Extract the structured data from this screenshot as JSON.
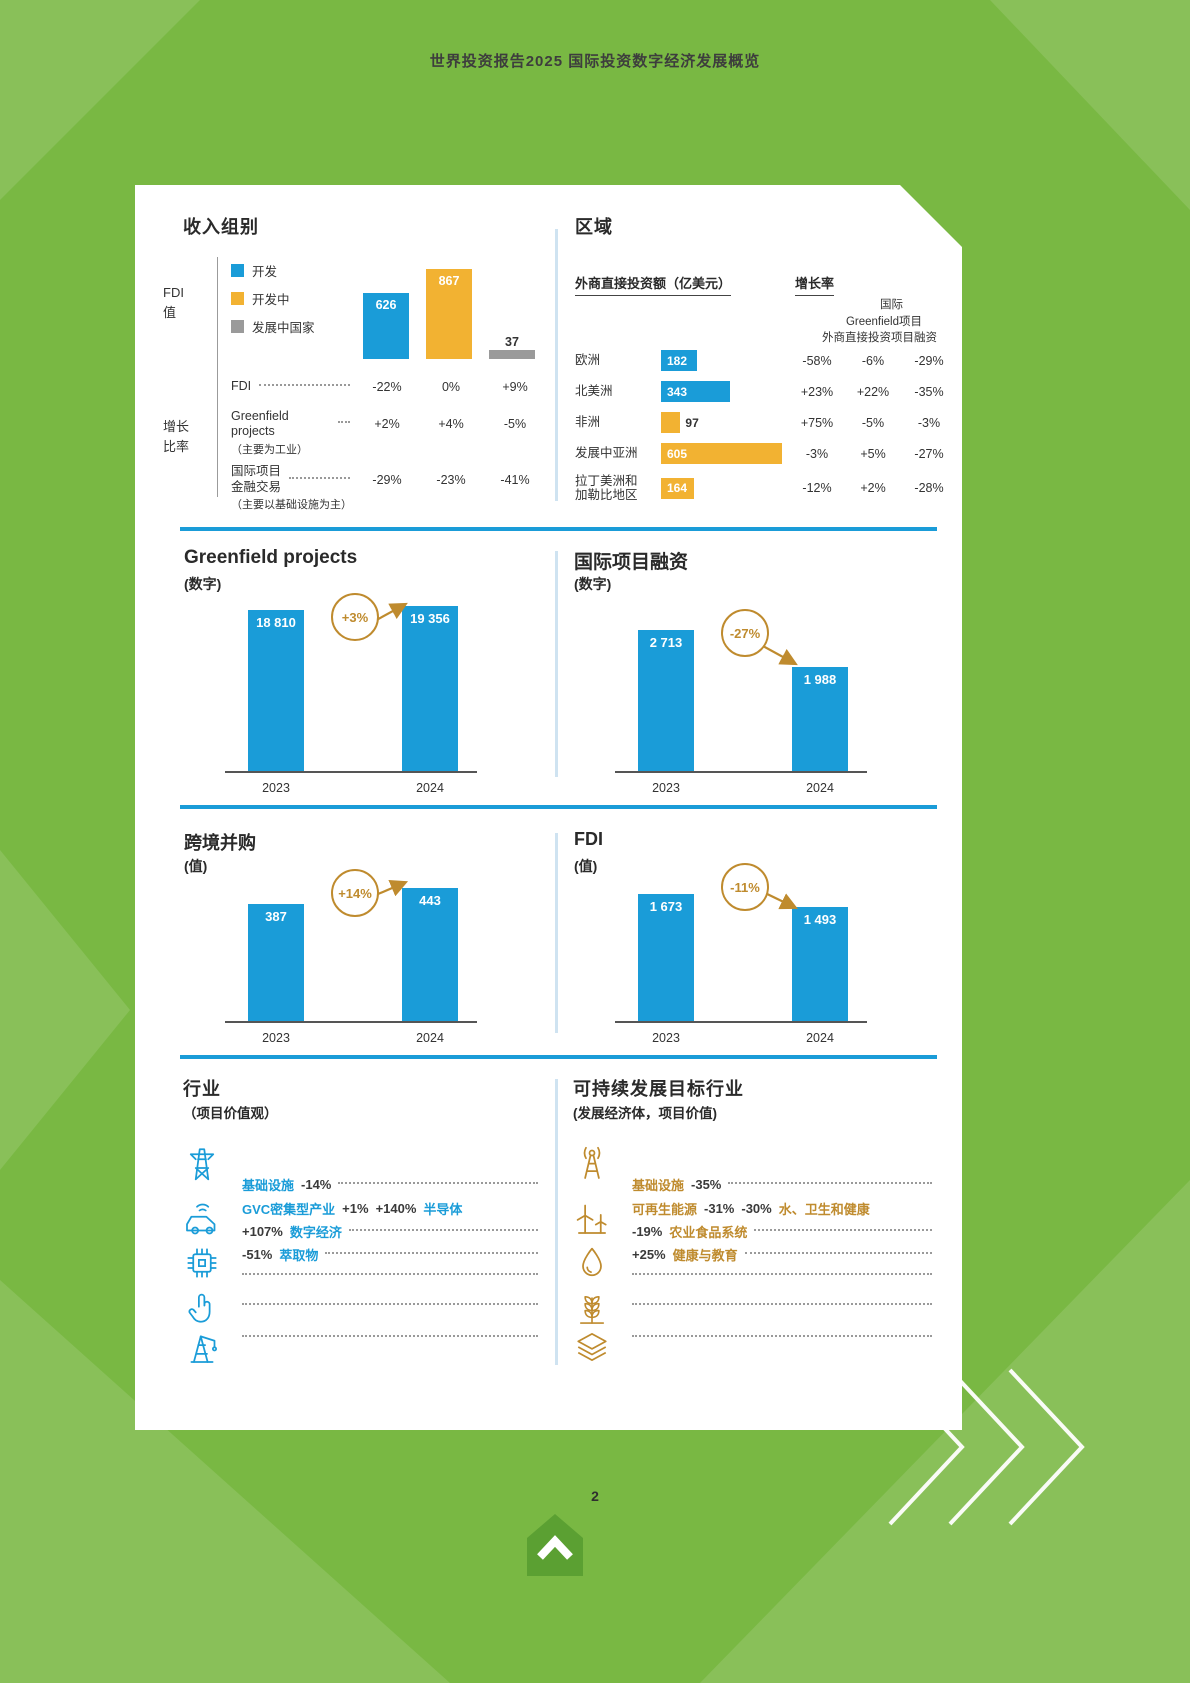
{
  "page": {
    "header": "世界投资报告2025 国际投资数字经济发展概览",
    "page_number": "2"
  },
  "income_group": {
    "title": "收入组别",
    "axis_label_value": "FDI\n值",
    "axis_label_growth": "增长\n比率",
    "legend": [
      {
        "label": "开发"
      },
      {
        "label": "开发中"
      },
      {
        "label": "发展中国家"
      }
    ],
    "growth_rows": [
      {
        "label": "FDI",
        "sub": "",
        "v1": "-22%",
        "v2": "0%",
        "v3": "+9%"
      },
      {
        "label": "Greenfield projects",
        "sub": "（主要为工业）",
        "v1": "+2%",
        "v2": "+4%",
        "v3": "-5%"
      },
      {
        "label": "国际项目\n金融交易",
        "sub": "（主要以基础设施为主）",
        "v1": "-29%",
        "v2": "-23%",
        "v3": "-41%"
      }
    ]
  },
  "region": {
    "title": "区域",
    "amount_header": "外商直接投资额（亿美元）",
    "growth_header": "增长率",
    "sub_headers": [
      "国际",
      "Greenfield项目",
      "外商直接投资项目融资"
    ],
    "rows": [
      {
        "label": "欧洲",
        "value": "182",
        "p1": "-58%",
        "p2": "-6%",
        "p3": "-29%"
      },
      {
        "label": "北美洲",
        "value": "343",
        "p1": "+23%",
        "p2": "+22%",
        "p3": "-35%"
      },
      {
        "label": "非洲",
        "value": "97",
        "p1": "+75%",
        "p2": "-5%",
        "p3": "-3%"
      },
      {
        "label": "发展中亚洲",
        "value": "605",
        "p1": "-3%",
        "p2": "+5%",
        "p3": "-27%"
      },
      {
        "label": "拉丁美洲和\n加勒比地区",
        "value": "164",
        "p1": "-12%",
        "p2": "+2%",
        "p3": "-28%"
      }
    ]
  },
  "sections": {
    "greenfield": {
      "title": "Greenfield projects",
      "subtitle": "(数字)"
    },
    "ipf": {
      "title": "国际项目融资",
      "subtitle": "(数字)"
    },
    "mna": {
      "title": "跨境并购",
      "subtitle": "(值)"
    },
    "fdi": {
      "title": "FDI",
      "subtitle": "(值)"
    }
  },
  "industry": {
    "title": "行业",
    "subtitle": "（项目价值观）",
    "l1_term": "基础设施",
    "l1_pct": "-14%",
    "l2_term": "GVC密集型产业",
    "l2_pct1": "+1%",
    "l2_pct2": "+140%",
    "l2_term2": "半导体",
    "l3_pct": "+107%",
    "l3_term": "数字经济",
    "l4_pct": "-51%",
    "l4_term": "萃取物"
  },
  "sdg": {
    "title": "可持续发展目标行业",
    "subtitle": "(发展经济体，项目价值)",
    "l1_term": "基础设施",
    "l1_pct": "-35%",
    "l2_term": "可再生能源",
    "l2_pct1": "-31%",
    "l2_pct2": "-30%",
    "l2_term2": "水、卫生和健康",
    "l3_pct": "-19%",
    "l3_term": "农业食品系统",
    "l4_pct": "+25%",
    "l4_term": "健康与教育"
  },
  "chart_data": [
    {
      "id": "income_group_fdi_value",
      "type": "bar",
      "title": "收入组别 — FDI 值",
      "categories": [
        "开发",
        "开发中",
        "发展中国家"
      ],
      "values": [
        626,
        867,
        37
      ],
      "labels": [
        "626",
        "867",
        "37"
      ],
      "ylim": [
        0,
        900
      ]
    },
    {
      "id": "region_fdi_amount",
      "type": "bar",
      "title": "区域 — 外商直接投资额（亿美元）",
      "categories": [
        "欧洲",
        "北美洲",
        "非洲",
        "发展中亚洲",
        "拉丁美洲和加勒比地区"
      ],
      "values": [
        182,
        343,
        97,
        605,
        164
      ],
      "xlim": [
        0,
        650
      ],
      "growth_series": [
        {
          "name": "外商直接投资",
          "values": [
            "-58%",
            "+23%",
            "+75%",
            "-3%",
            "-12%"
          ]
        },
        {
          "name": "Greenfield项目",
          "values": [
            "-6%",
            "+22%",
            "-5%",
            "+5%",
            "+2%"
          ]
        },
        {
          "name": "国际项目融资",
          "values": [
            "-29%",
            "-35%",
            "-3%",
            "-27%",
            "-28%"
          ]
        }
      ]
    },
    {
      "id": "greenfield_projects_number",
      "type": "bar",
      "title": "Greenfield projects (数字)",
      "categories": [
        "2023",
        "2024"
      ],
      "values": [
        18810,
        19356
      ],
      "labels": [
        "18 810",
        "19 356"
      ],
      "change": "+3%",
      "ylim": [
        0,
        20500
      ]
    },
    {
      "id": "international_project_finance_number",
      "type": "bar",
      "title": "国际项目融资 (数字)",
      "categories": [
        "2023",
        "2024"
      ],
      "values": [
        2713,
        1988
      ],
      "labels": [
        "2 713",
        "1 988"
      ],
      "change": "-27%",
      "ylim": [
        0,
        3400
      ]
    },
    {
      "id": "cross_border_mna_value",
      "type": "bar",
      "title": "跨境并购 (值)",
      "categories": [
        "2023",
        "2024"
      ],
      "values": [
        387,
        443
      ],
      "labels": [
        "387",
        "443"
      ],
      "change": "+14%",
      "ylim": [
        0,
        520
      ]
    },
    {
      "id": "fdi_value",
      "type": "bar",
      "title": "FDI (值)",
      "categories": [
        "2023",
        "2024"
      ],
      "values": [
        1673,
        1493
      ],
      "labels": [
        "1 673",
        "1 493"
      ],
      "change": "-11%",
      "ylim": [
        0,
        2050
      ]
    }
  ],
  "colors": {
    "background_green": "#79b843",
    "bar_blue": "#1a9cd8",
    "bar_yellow": "#f2b232",
    "bar_gray": "#9a9a9a",
    "accent_orange": "#bf8b2e"
  }
}
